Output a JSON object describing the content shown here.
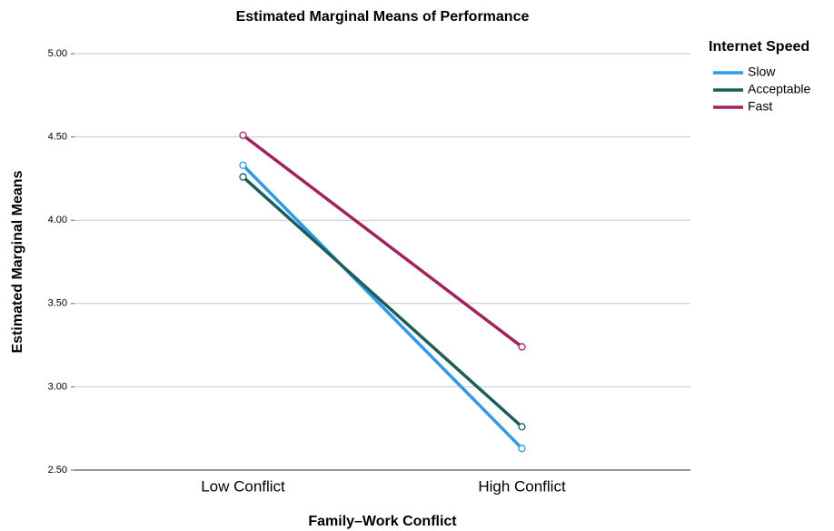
{
  "chart_data": {
    "type": "line",
    "title": "Estimated Marginal Means of Performance",
    "xlabel": "Family–Work Conflict",
    "ylabel": "Estimated Marginal Means",
    "categories": [
      "Low Conflict",
      "High Conflict"
    ],
    "series": [
      {
        "name": "Slow",
        "color": "#2f9be2",
        "values": [
          4.33,
          2.63
        ]
      },
      {
        "name": "Acceptable",
        "color": "#1b5e5b",
        "values": [
          4.26,
          2.76
        ]
      },
      {
        "name": "Fast",
        "color": "#a0225e",
        "values": [
          4.51,
          3.24
        ]
      }
    ],
    "legend_title": "Internet Speed",
    "legend": "right",
    "ylim": [
      2.5,
      5.0
    ],
    "yticks": [
      {
        "value": 2.5,
        "label": "2.50"
      },
      {
        "value": 3.0,
        "label": "3.00"
      },
      {
        "value": 3.5,
        "label": "3.50"
      },
      {
        "value": 4.0,
        "label": "4.00"
      },
      {
        "value": 4.5,
        "label": "4.50"
      },
      {
        "value": 5.0,
        "label": "5.00"
      }
    ],
    "grid": true
  }
}
